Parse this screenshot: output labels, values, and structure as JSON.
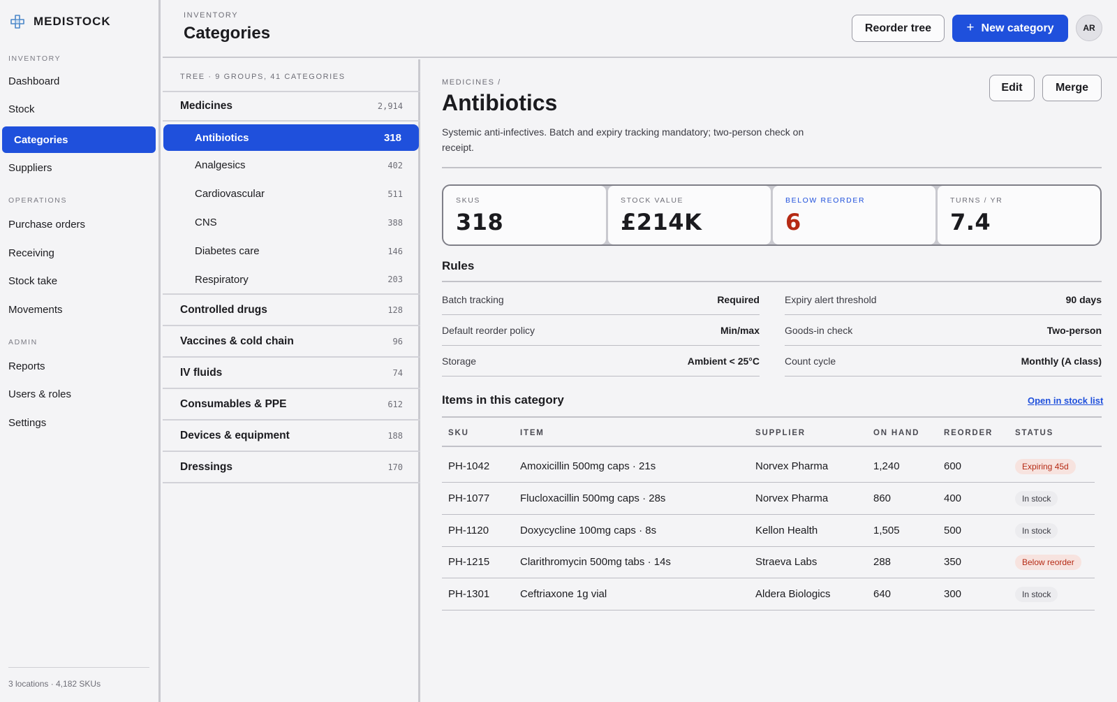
{
  "brand": {
    "name": "MEDISTOCK"
  },
  "sidebar": {
    "sections": [
      {
        "label": "INVENTORY",
        "items": [
          "Dashboard",
          "Stock",
          "Categories",
          "Suppliers"
        ]
      },
      {
        "label": "OPERATIONS",
        "items": [
          "Purchase orders",
          "Receiving",
          "Stock take",
          "Movements"
        ]
      },
      {
        "label": "ADMIN",
        "items": [
          "Reports",
          "Users & roles",
          "Settings"
        ]
      }
    ],
    "active_item": "Categories",
    "footer": "3 locations · 4,182 SKUs"
  },
  "header": {
    "crumb": "INVENTORY",
    "title": "Categories",
    "reorder_label": "Reorder tree",
    "new_label": "New category",
    "avatar_initials": "AR"
  },
  "tree": {
    "heading": "TREE · 9 GROUPS, 41 CATEGORIES",
    "rows": [
      {
        "label": "Medicines",
        "count": "2,914",
        "kind": "group"
      },
      {
        "label": "Antibiotics",
        "count": "318",
        "kind": "child",
        "selected": true
      },
      {
        "label": "Analgesics",
        "count": "402",
        "kind": "child"
      },
      {
        "label": "Cardiovascular",
        "count": "511",
        "kind": "child"
      },
      {
        "label": "CNS",
        "count": "388",
        "kind": "child"
      },
      {
        "label": "Diabetes care",
        "count": "146",
        "kind": "child"
      },
      {
        "label": "Respiratory",
        "count": "203",
        "kind": "child"
      },
      {
        "label": "Controlled drugs",
        "count": "128",
        "kind": "group"
      },
      {
        "label": "Vaccines & cold chain",
        "count": "96",
        "kind": "group"
      },
      {
        "label": "IV fluids",
        "count": "74",
        "kind": "group"
      },
      {
        "label": "Consumables & PPE",
        "count": "612",
        "kind": "group"
      },
      {
        "label": "Devices & equipment",
        "count": "188",
        "kind": "group"
      },
      {
        "label": "Dressings",
        "count": "170",
        "kind": "group"
      }
    ]
  },
  "detail": {
    "crumb": "MEDICINES /",
    "title": "Antibiotics",
    "edit_label": "Edit",
    "merge_label": "Merge",
    "description": "Systemic anti-infectives. Batch and expiry tracking mandatory; two-person check on receipt.",
    "stats": [
      {
        "key": "SKUS",
        "value": "318"
      },
      {
        "key": "STOCK VALUE",
        "value": "£214K"
      },
      {
        "key": "BELOW REORDER",
        "value": "6",
        "warn": true
      },
      {
        "key": "TURNS / YR",
        "value": "7.4"
      }
    ],
    "rules_title": "Rules",
    "rules": [
      {
        "key": "Batch tracking",
        "value": "Required"
      },
      {
        "key": "Expiry alert threshold",
        "value": "90 days"
      },
      {
        "key": "Default reorder policy",
        "value": "Min/max"
      },
      {
        "key": "Goods-in check",
        "value": "Two-person"
      },
      {
        "key": "Storage",
        "value": "Ambient < 25°C"
      },
      {
        "key": "Count cycle",
        "value": "Monthly (A class)"
      }
    ],
    "items_title": "Items in this category",
    "open_link": "Open in stock list",
    "columns": [
      "SKU",
      "ITEM",
      "SUPPLIER",
      "ON HAND",
      "REORDER",
      "STATUS"
    ],
    "items": [
      {
        "sku": "PH-1042",
        "item": "Amoxicillin 500mg caps · 21s",
        "supplier": "Norvex Pharma",
        "on_hand": "1,240",
        "reorder": "600",
        "status": "Expiring 45d",
        "status_kind": "warn"
      },
      {
        "sku": "PH-1077",
        "item": "Flucloxacillin 500mg caps · 28s",
        "supplier": "Norvex Pharma",
        "on_hand": "860",
        "reorder": "400",
        "status": "In stock",
        "status_kind": "ok"
      },
      {
        "sku": "PH-1120",
        "item": "Doxycycline 100mg caps · 8s",
        "supplier": "Kellon Health",
        "on_hand": "1,505",
        "reorder": "500",
        "status": "In stock",
        "status_kind": "ok"
      },
      {
        "sku": "PH-1215",
        "item": "Clarithromycin 500mg tabs · 14s",
        "supplier": "Straeva Labs",
        "on_hand": "288",
        "reorder": "350",
        "status": "Below reorder",
        "status_kind": "warn"
      },
      {
        "sku": "PH-1301",
        "item": "Ceftriaxone 1g vial",
        "supplier": "Aldera Biologics",
        "on_hand": "640",
        "reorder": "300",
        "status": "In stock",
        "status_kind": "ok"
      }
    ]
  },
  "colors": {
    "accent": "#1f50dc",
    "danger": "#b52a14",
    "background": "#f4f4f6"
  },
  "icons": {
    "brand": "medical-cross-icon",
    "add": "plus-icon"
  }
}
